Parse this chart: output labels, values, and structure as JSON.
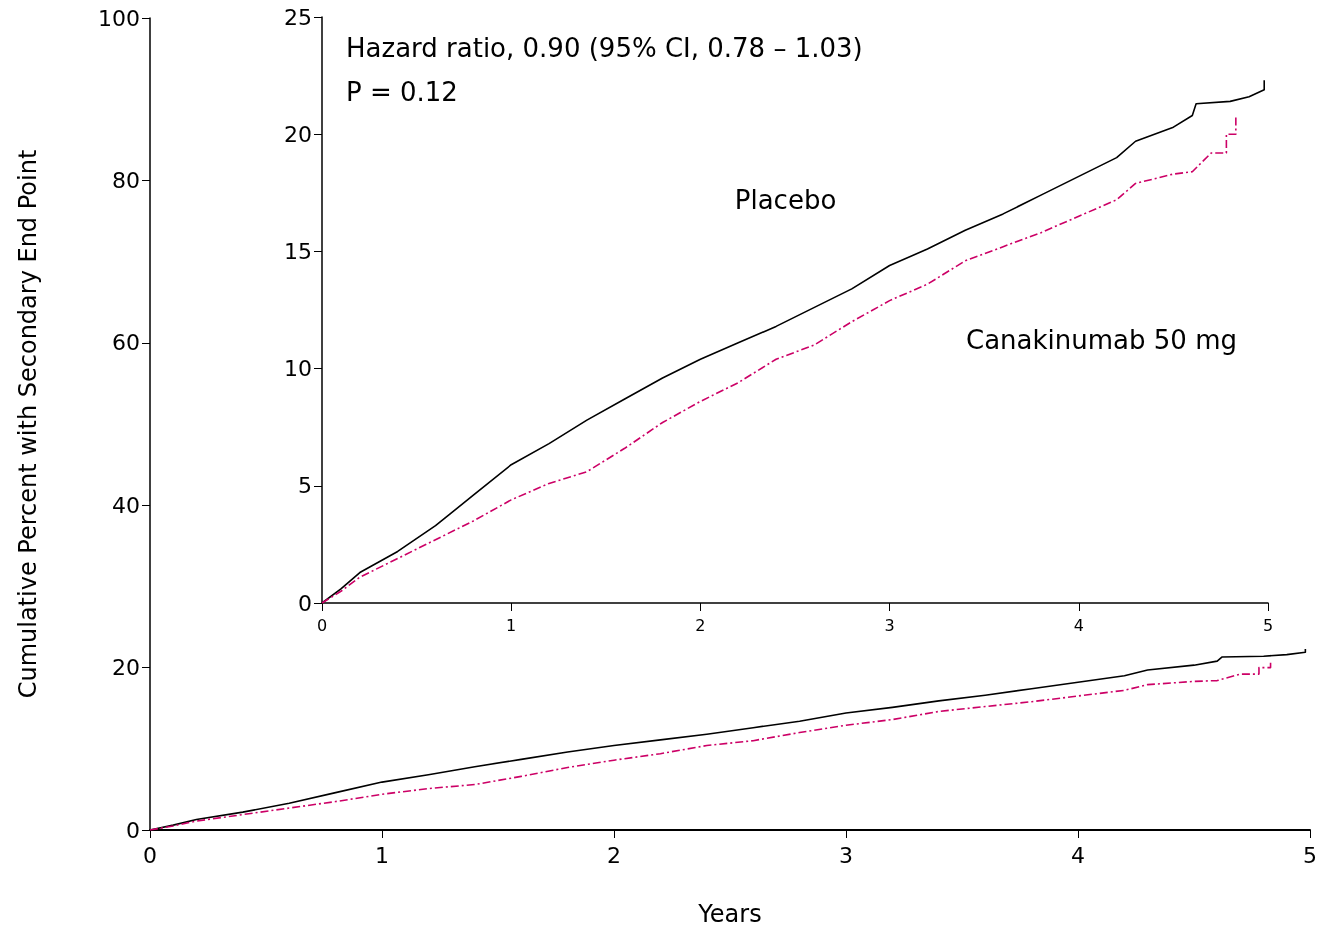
{
  "chart_data": [
    {
      "type": "line",
      "xlabel": "Years",
      "ylabel": "Cumulative Percent with Secondary End Point",
      "xlim": [
        0,
        5
      ],
      "xticks": [
        0,
        1,
        2,
        3,
        4,
        5
      ],
      "ylim": [
        0,
        100
      ],
      "yticks": [
        0,
        20,
        40,
        60,
        80,
        100
      ],
      "grid": false,
      "marker": "none",
      "series": [
        {
          "color": "#000000",
          "line_style": "solid",
          "x": [
            0,
            0.1,
            0.2,
            0.4,
            0.6,
            0.8,
            1.0,
            1.2,
            1.4,
            1.6,
            1.8,
            2.0,
            2.2,
            2.4,
            2.6,
            2.8,
            3.0,
            3.2,
            3.4,
            3.6,
            3.8,
            4.0,
            4.2,
            4.3,
            4.5,
            4.6,
            4.62,
            4.8,
            4.9,
            4.98,
            4.98
          ],
          "values": [
            0,
            0.6,
            1.3,
            2.2,
            3.3,
            4.6,
            5.9,
            6.8,
            7.8,
            8.7,
            9.6,
            10.4,
            11.1,
            11.8,
            12.6,
            13.4,
            14.4,
            15.1,
            15.9,
            16.6,
            17.4,
            18.2,
            19.0,
            19.7,
            20.3,
            20.8,
            21.3,
            21.4,
            21.6,
            21.9,
            22.3
          ]
        },
        {
          "color": "#cc0066",
          "line_style": "dashed",
          "x": [
            0,
            0.1,
            0.2,
            0.4,
            0.6,
            0.8,
            1.0,
            1.2,
            1.4,
            1.6,
            1.8,
            2.0,
            2.2,
            2.4,
            2.6,
            2.8,
            3.0,
            3.2,
            3.4,
            3.6,
            3.8,
            4.0,
            4.2,
            4.3,
            4.5,
            4.6,
            4.7,
            4.78,
            4.78,
            4.83,
            4.83
          ],
          "values": [
            0,
            0.5,
            1.1,
            1.9,
            2.7,
            3.5,
            4.4,
            5.1,
            5.6,
            6.6,
            7.7,
            8.6,
            9.4,
            10.4,
            11.0,
            12.0,
            12.9,
            13.6,
            14.6,
            15.2,
            15.8,
            16.5,
            17.2,
            17.9,
            18.3,
            18.4,
            19.2,
            19.2,
            20.0,
            20.0,
            20.8
          ]
        }
      ]
    },
    {
      "type": "line",
      "xlim": [
        0,
        5
      ],
      "xticks": [
        0,
        1,
        2,
        3,
        4,
        5
      ],
      "ylim": [
        0,
        25
      ],
      "yticks": [
        0,
        5,
        10,
        15,
        20,
        25
      ],
      "grid": false,
      "marker": "none",
      "annotations": [
        "Hazard ratio, 0.90 (95% CI, 0.78 – 1.03)",
        "P = 0.12"
      ],
      "series": [
        {
          "name": "Placebo",
          "color": "#000000",
          "line_style": "solid",
          "x": [
            0,
            0.1,
            0.2,
            0.4,
            0.6,
            0.8,
            1.0,
            1.2,
            1.4,
            1.6,
            1.8,
            2.0,
            2.2,
            2.4,
            2.6,
            2.8,
            3.0,
            3.2,
            3.4,
            3.6,
            3.8,
            4.0,
            4.2,
            4.3,
            4.5,
            4.6,
            4.62,
            4.8,
            4.9,
            4.98,
            4.98
          ],
          "values": [
            0,
            0.6,
            1.3,
            2.2,
            3.3,
            4.6,
            5.9,
            6.8,
            7.8,
            8.7,
            9.6,
            10.4,
            11.1,
            11.8,
            12.6,
            13.4,
            14.4,
            15.1,
            15.9,
            16.6,
            17.4,
            18.2,
            19.0,
            19.7,
            20.3,
            20.8,
            21.3,
            21.4,
            21.6,
            21.9,
            22.3
          ]
        },
        {
          "name": "Canakinumab 50 mg",
          "color": "#cc0066",
          "line_style": "dashed",
          "x": [
            0,
            0.1,
            0.2,
            0.4,
            0.6,
            0.8,
            1.0,
            1.2,
            1.4,
            1.6,
            1.8,
            2.0,
            2.2,
            2.4,
            2.6,
            2.8,
            3.0,
            3.2,
            3.4,
            3.6,
            3.8,
            4.0,
            4.2,
            4.3,
            4.5,
            4.6,
            4.7,
            4.78,
            4.78,
            4.83,
            4.83
          ],
          "values": [
            0,
            0.5,
            1.1,
            1.9,
            2.7,
            3.5,
            4.4,
            5.1,
            5.6,
            6.6,
            7.7,
            8.6,
            9.4,
            10.4,
            11.0,
            12.0,
            12.9,
            13.6,
            14.6,
            15.2,
            15.8,
            16.5,
            17.2,
            17.9,
            18.3,
            18.4,
            19.2,
            19.2,
            20.0,
            20.0,
            20.8
          ]
        }
      ]
    }
  ]
}
